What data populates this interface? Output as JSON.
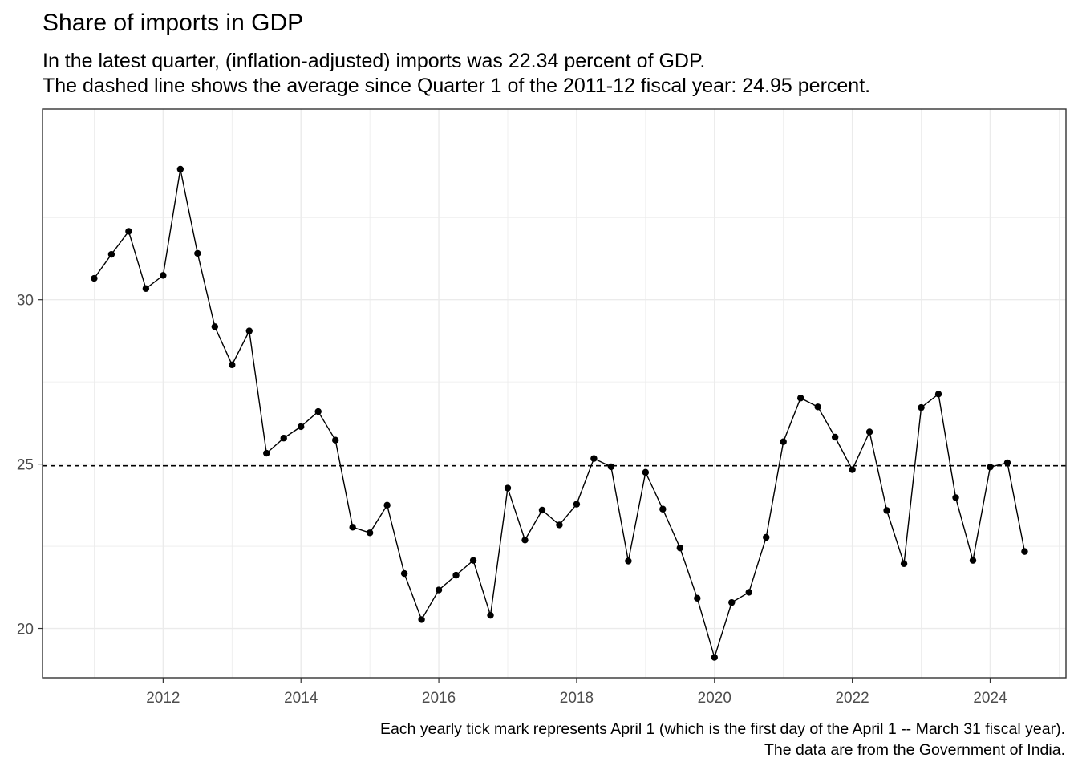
{
  "title": "Share of imports in GDP",
  "subtitle": [
    "In the latest quarter, (inflation-adjusted) imports was 22.34 percent of GDP.",
    "The dashed line shows the average since Quarter 1 of the 2011-12 fiscal year: 24.95 percent."
  ],
  "caption": [
    "Each yearly tick mark represents April 1 (which is the first day of the April 1 -- March 31 fiscal year).",
    "The data are from the Government of India."
  ],
  "chart_data": {
    "type": "line",
    "title": "Share of imports in GDP",
    "xlabel": "",
    "ylabel": "",
    "xlim": [
      2010.25,
      2025.1
    ],
    "ylim": [
      18.5,
      35.8
    ],
    "x_ticks": [
      2012,
      2014,
      2016,
      2018,
      2020,
      2022,
      2024
    ],
    "y_ticks": [
      20,
      25,
      30
    ],
    "grid": true,
    "reference_line": {
      "y": 24.95,
      "style": "dashed"
    },
    "series": [
      {
        "x": [
          2011.0,
          2011.25,
          2011.5,
          2011.75,
          2012.0,
          2012.25,
          2012.5,
          2012.75,
          2013.0,
          2013.25,
          2013.5,
          2013.75,
          2014.0,
          2014.25,
          2014.5,
          2014.75,
          2015.0,
          2015.25,
          2015.5,
          2015.75,
          2016.0,
          2016.25,
          2016.5,
          2016.75,
          2017.0,
          2017.25,
          2017.5,
          2017.75,
          2018.0,
          2018.25,
          2018.5,
          2018.75,
          2019.0,
          2019.25,
          2019.5,
          2019.75,
          2020.0,
          2020.25,
          2020.5,
          2020.75,
          2021.0,
          2021.25,
          2021.5,
          2021.75,
          2022.0,
          2022.25,
          2022.5,
          2022.75,
          2023.0,
          2023.25,
          2023.5,
          2023.75,
          2024.0,
          2024.25,
          2024.5
        ],
        "values": [
          30.65,
          31.38,
          32.08,
          30.34,
          30.74,
          33.97,
          31.41,
          29.18,
          28.02,
          29.05,
          25.33,
          25.79,
          26.14,
          26.6,
          25.73,
          23.08,
          22.91,
          23.75,
          21.67,
          20.27,
          21.17,
          21.62,
          22.07,
          20.4,
          24.27,
          22.69,
          23.6,
          23.15,
          23.78,
          25.17,
          24.92,
          22.05,
          24.75,
          23.63,
          22.45,
          20.92,
          19.12,
          20.79,
          21.1,
          22.77,
          25.68,
          27.01,
          26.74,
          25.82,
          24.83,
          25.98,
          23.59,
          21.97,
          26.72,
          27.13,
          23.98,
          22.07,
          24.91,
          25.04,
          22.34
        ]
      }
    ]
  }
}
